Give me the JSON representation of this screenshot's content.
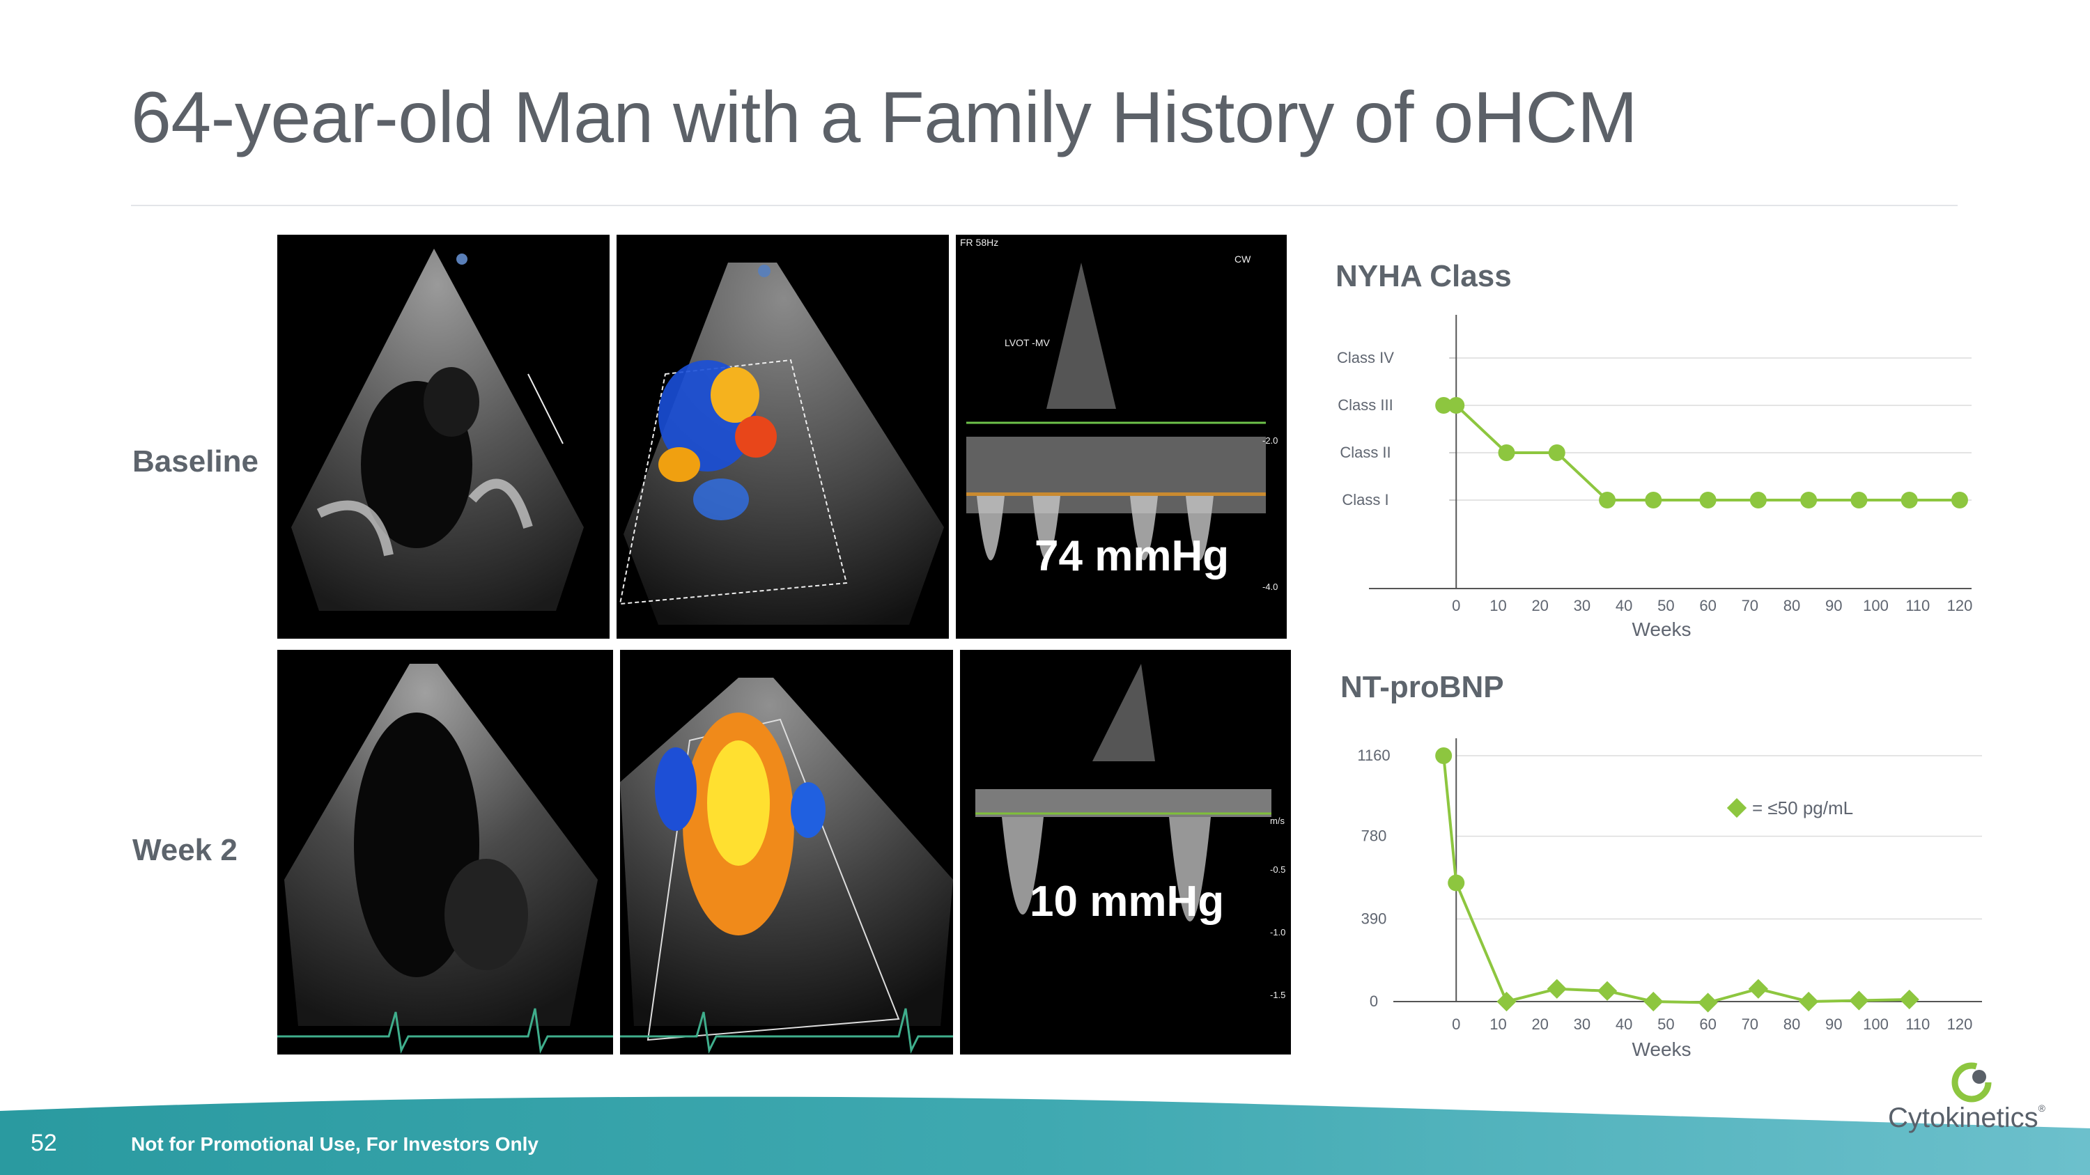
{
  "slide": {
    "title": "64-year-old Man with a Family History of oHCM",
    "page_number": "52",
    "footer_text": "Not for Promotional Use, For Investors Only",
    "logo_text": "Cytokinetics",
    "logo_mark": "®"
  },
  "rows": [
    {
      "label": "Baseline",
      "gradient": "74 mmHg"
    },
    {
      "label": "Week 2",
      "gradient": "10 mmHg"
    }
  ],
  "colors": {
    "accent": "#8dc63f",
    "footer_start": "#2a9aa0",
    "footer_end": "#5bb6c6",
    "text": "#5d646c"
  },
  "chart_data": [
    {
      "type": "line",
      "title": "NYHA Class",
      "xlabel": "Weeks",
      "x_ticks": [
        0,
        10,
        20,
        30,
        40,
        50,
        60,
        70,
        80,
        90,
        100,
        110,
        120
      ],
      "y_categories": [
        "Class I",
        "Class II",
        "Class III",
        "Class IV"
      ],
      "xlim": [
        -10,
        122
      ],
      "series": [
        {
          "x": [
            -3,
            0,
            12,
            24,
            36,
            47,
            60,
            72,
            84,
            96,
            108,
            120
          ],
          "y": [
            3,
            3,
            2,
            2,
            1,
            1,
            1,
            1,
            1,
            1,
            1,
            1
          ]
        }
      ]
    },
    {
      "type": "line",
      "title": "NT-proBNP",
      "xlabel": "Weeks",
      "x_ticks": [
        0,
        10,
        20,
        30,
        40,
        50,
        60,
        70,
        80,
        90,
        100,
        110,
        120
      ],
      "y_ticks": [
        0,
        390,
        780,
        1160
      ],
      "ylim": [
        0,
        1160
      ],
      "xlim": [
        -10,
        122
      ],
      "legend": "= ≤50 pg/mL",
      "series": [
        {
          "x": [
            -3,
            0,
            12,
            24,
            36,
            47,
            60,
            72,
            84,
            96,
            108
          ],
          "y": [
            1160,
            560,
            0,
            60,
            50,
            0,
            -5,
            60,
            0,
            5,
            10
          ]
        }
      ]
    }
  ]
}
